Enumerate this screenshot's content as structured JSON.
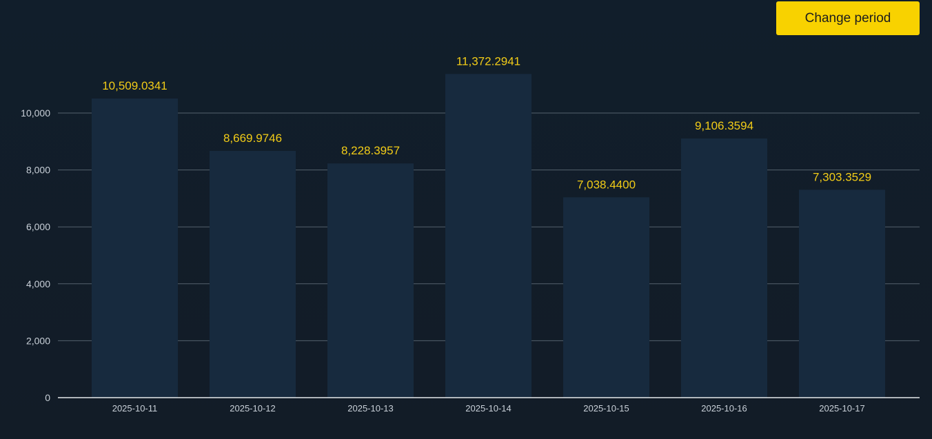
{
  "header": {
    "change_period_label": "Change period"
  },
  "colors": {
    "background": "#111e2b",
    "bar": "#172a3e",
    "data_label": "#f2cc17",
    "button": "#f8d200",
    "grid": "#55626e"
  },
  "chart_data": {
    "type": "bar",
    "categories": [
      "2025-10-11",
      "2025-10-12",
      "2025-10-13",
      "2025-10-14",
      "2025-10-15",
      "2025-10-16",
      "2025-10-17"
    ],
    "values": [
      10509.0341,
      8669.9746,
      8228.3957,
      11372.2941,
      7038.44,
      9106.3594,
      7303.3529
    ],
    "data_labels": [
      "10,509.0341",
      "8,669.9746",
      "8,228.3957",
      "11,372.2941",
      "7,038.4400",
      "9,106.3594",
      "7,303.3529"
    ],
    "yticks": [
      0,
      2000,
      4000,
      6000,
      8000,
      10000
    ],
    "ytick_labels": [
      "0",
      "2,000",
      "4,000",
      "6,000",
      "8,000",
      "10,000"
    ],
    "ylim": [
      0,
      12000
    ],
    "grid": true,
    "title": "",
    "xlabel": "",
    "ylabel": ""
  }
}
